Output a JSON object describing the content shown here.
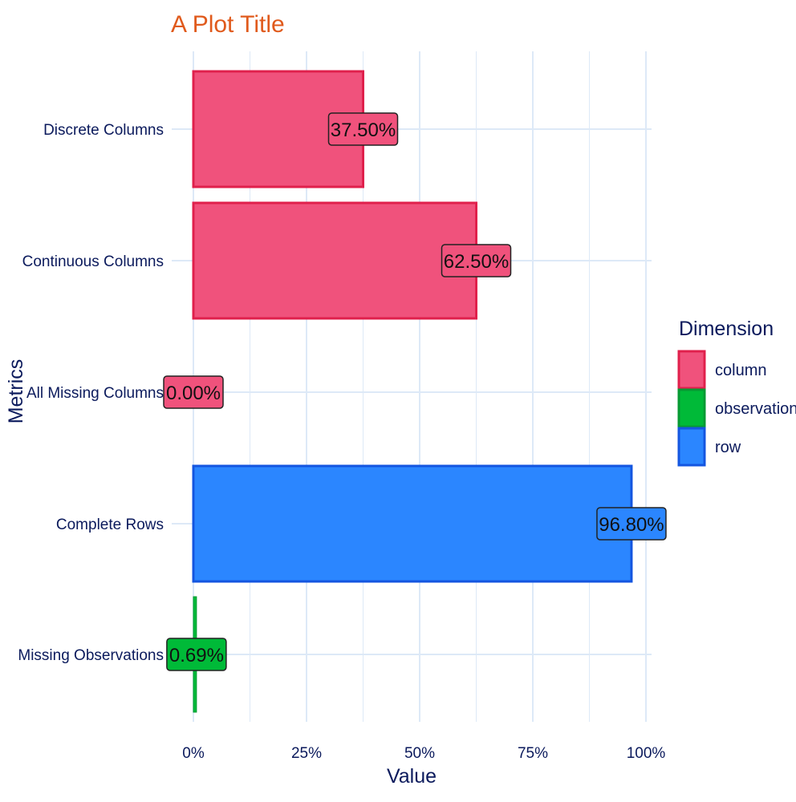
{
  "chart_data": {
    "type": "bar",
    "orientation": "horizontal",
    "title": "A Plot Title",
    "xlabel": "Value",
    "ylabel": "Metrics",
    "xlim": [
      0,
      1
    ],
    "x_ticks": [
      "0%",
      "25%",
      "50%",
      "75%",
      "100%"
    ],
    "x_tick_values": [
      0,
      0.25,
      0.5,
      0.75,
      1.0
    ],
    "grid": true,
    "legend": {
      "title": "Dimension",
      "position": "right",
      "entries": [
        "column",
        "observation",
        "row"
      ]
    },
    "categories": [
      "Discrete Columns",
      "Continuous Columns",
      "All Missing Columns",
      "Complete Rows",
      "Missing Observations"
    ],
    "values": [
      0.375,
      0.625,
      0.0,
      0.968,
      0.0069
    ],
    "labels": [
      "37.50%",
      "62.50%",
      "0.00%",
      "96.80%",
      "0.69%"
    ],
    "dimension": [
      "column",
      "column",
      "column",
      "row",
      "observation"
    ],
    "colors": {
      "column": {
        "fill": "#f0527c",
        "stroke": "#e0204c"
      },
      "observation": {
        "fill": "#00ba38",
        "stroke": "#079a33"
      },
      "row": {
        "fill": "#2b86ff",
        "stroke": "#1456e0"
      },
      "title": "#e05a1c",
      "grid": "#dde9f7",
      "text": "#0b1a5c"
    }
  }
}
